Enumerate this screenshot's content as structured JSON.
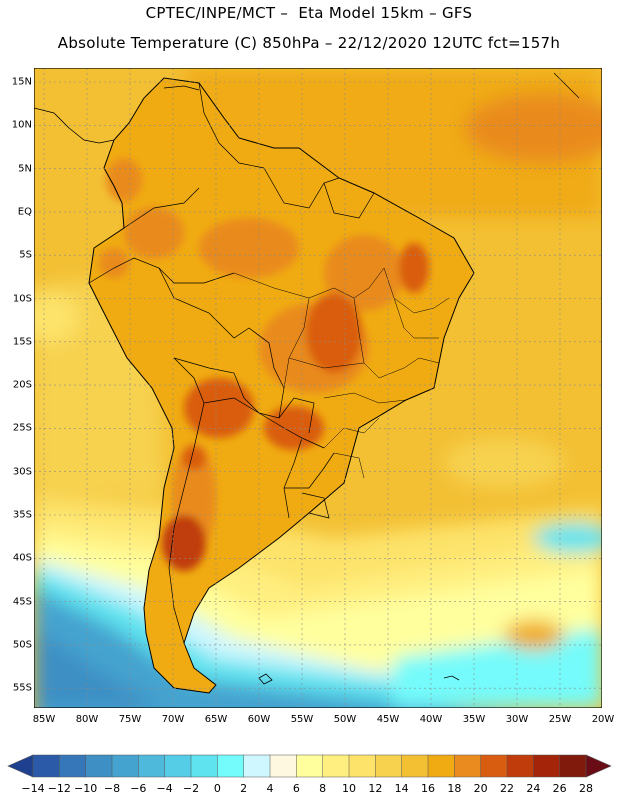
{
  "header": {
    "line1": "CPTEC/INPE/MCT –  Eta Model 15km – GFS",
    "line2": "Absolute Temperature (C) 850hPa – 22/12/2020 12UTC fct=157h"
  },
  "map": {
    "region": "South America",
    "lat_ticks": [
      "15N",
      "10N",
      "5N",
      "EQ",
      "5S",
      "10S",
      "15S",
      "20S",
      "25S",
      "30S",
      "35S",
      "40S",
      "45S",
      "50S",
      "55S"
    ],
    "lon_ticks": [
      "85W",
      "80W",
      "75W",
      "70W",
      "65W",
      "60W",
      "55W",
      "50W",
      "45W",
      "40W",
      "35W",
      "30W",
      "25W",
      "20W"
    ]
  },
  "colorbar": {
    "labels": [
      "-14",
      "-12",
      "-10",
      "-8",
      "-6",
      "-4",
      "-2",
      "0",
      "2",
      "4",
      "6",
      "8",
      "10",
      "12",
      "14",
      "16",
      "18",
      "20",
      "22",
      "24",
      "26",
      "28"
    ],
    "colors": [
      "#1f3f8f",
      "#2a5aa8",
      "#3577b8",
      "#3d8fc4",
      "#45a3cf",
      "#4fb9dc",
      "#55cde6",
      "#5fe3ef",
      "#74fbfb",
      "#cff7ff",
      "#fff8e0",
      "#ffff9e",
      "#ffef80",
      "#fde36a",
      "#f7d24f",
      "#f3c034",
      "#f0ab12",
      "#e98b1e",
      "#d95d10",
      "#c03c0a",
      "#a32408",
      "#7f1a0c",
      "#6a0c16"
    ]
  }
}
